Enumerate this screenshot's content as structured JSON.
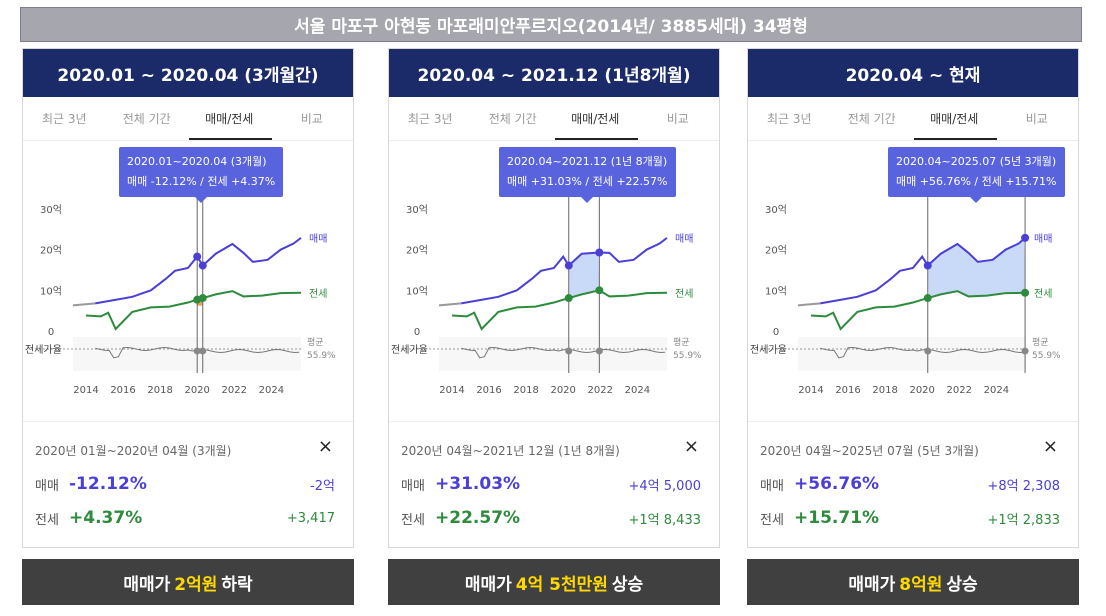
{
  "title": "서울 마포구 아현동 마포래미안푸르지오(2014년/ 3885세대) 34평형",
  "tabs": [
    "최근 3년",
    "전체 기간",
    "매매/전세",
    "비교"
  ],
  "active_tab": 2,
  "series_labels": {
    "sale": "매매",
    "jeonse": "전세",
    "ratio": "전세가율",
    "avg": "평균",
    "avg_value": "55.9%"
  },
  "colors": {
    "sale": "#4a3fd6",
    "jeonse": "#2e8b3d",
    "highlight": "#5a63de",
    "header": "#1b2a68",
    "banner": "#404040",
    "banner_highlight": "#ffd800"
  },
  "panels": [
    {
      "header": "2020.01 ~ 2020.04 (3개월간)",
      "tooltip": {
        "line1": "2020.01~2020.04 (3개월)",
        "line2": "매매 -12.12%  /  전세 +4.37%"
      },
      "summary": {
        "period": "2020년 01월~2020년 04월 (3개월)",
        "close": "×",
        "sale_label": "매매",
        "sale_pct": "-12.12%",
        "sale_amt": "-2억",
        "jeonse_label": "전세",
        "jeonse_pct": "+4.37%",
        "jeonse_amt": "+3,417"
      },
      "banner": {
        "prefix": "매매가",
        "highlight": "2억원",
        "suffix": "하락"
      }
    },
    {
      "header": "2020.04 ~ 2021.12 (1년8개월)",
      "tooltip": {
        "line1": "2020.04~2021.12 (1년 8개월)",
        "line2": "매매 +31.03%  /  전세 +22.57%"
      },
      "summary": {
        "period": "2020년 04월~2021년 12월 (1년 8개월)",
        "close": "×",
        "sale_label": "매매",
        "sale_pct": "+31.03%",
        "sale_amt": "+4억 5,000",
        "jeonse_label": "전세",
        "jeonse_pct": "+22.57%",
        "jeonse_amt": "+1억 8,433"
      },
      "banner": {
        "prefix": "매매가",
        "highlight": "4억 5천만원",
        "suffix": "상승"
      }
    },
    {
      "header": "2020.04 ~ 현재",
      "tooltip": {
        "line1": "2020.04~2025.07 (5년 3개월)",
        "line2": "매매 +56.76%  /  전세 +15.71%"
      },
      "summary": {
        "period": "2020년 04월~2025년 07월 (5년 3개월)",
        "close": "×",
        "sale_label": "매매",
        "sale_pct": "+56.76%",
        "sale_amt": "+8억 2,308",
        "jeonse_label": "전세",
        "jeonse_pct": "+15.71%",
        "jeonse_amt": "+1억 2,833"
      },
      "banner": {
        "prefix": "매매가",
        "highlight": "8억원",
        "suffix": "상승"
      }
    }
  ],
  "chart_data": [
    {
      "type": "line",
      "title": "2020.01 ~ 2020.04 (3개월간)",
      "x_ticks": [
        "2014",
        "2016",
        "2018",
        "2020",
        "2022",
        "2024"
      ],
      "y_ticks": [
        "0",
        "10억",
        "20억",
        "30억"
      ],
      "xlim": [
        2013.3,
        2025.6
      ],
      "ylim": [
        0,
        30
      ],
      "selection": [
        2020.0,
        2020.3
      ],
      "series": [
        {
          "name": "매매",
          "x": [
            2013.3,
            2014.5,
            2015.5,
            2016.5,
            2017.5,
            2018.3,
            2018.8,
            2019.5,
            2020.0,
            2020.3,
            2021.0,
            2021.9,
            2022.5,
            2023.0,
            2023.8,
            2024.5,
            2025.2,
            2025.6
          ],
          "values": [
            6.3,
            6.8,
            7.6,
            8.4,
            10.0,
            12.8,
            14.8,
            15.5,
            18.3,
            16.1,
            19.0,
            21.4,
            19.2,
            17.0,
            17.5,
            20.0,
            21.5,
            22.9
          ]
        },
        {
          "name": "전세",
          "x": [
            2014.0,
            2014.8,
            2015.2,
            2015.6,
            2016.5,
            2017.5,
            2018.5,
            2019.5,
            2020.0,
            2020.3,
            2021.0,
            2021.9,
            2022.5,
            2023.5,
            2024.5,
            2025.6
          ],
          "values": [
            3.8,
            3.6,
            4.5,
            0.5,
            4.7,
            5.8,
            6.0,
            7.0,
            7.7,
            8.1,
            9.0,
            9.8,
            8.5,
            8.7,
            9.3,
            9.4
          ]
        }
      ]
    },
    {
      "type": "line",
      "title": "2020.04 ~ 2021.12 (1년8개월)",
      "x_ticks": [
        "2014",
        "2016",
        "2018",
        "2020",
        "2022",
        "2024"
      ],
      "y_ticks": [
        "0",
        "10억",
        "20억",
        "30억"
      ],
      "xlim": [
        2013.3,
        2025.6
      ],
      "ylim": [
        0,
        30
      ],
      "selection": [
        2020.3,
        2021.95
      ],
      "series": [
        {
          "name": "매매",
          "x": [
            2013.3,
            2014.5,
            2015.5,
            2016.5,
            2017.5,
            2018.3,
            2018.8,
            2019.5,
            2020.0,
            2020.3,
            2021.0,
            2021.95,
            2022.5,
            2023.0,
            2023.8,
            2024.5,
            2025.2,
            2025.6
          ],
          "values": [
            6.3,
            6.8,
            7.6,
            8.4,
            10.0,
            12.8,
            14.8,
            15.5,
            18.3,
            16.1,
            19.0,
            19.3,
            19.2,
            17.0,
            17.5,
            20.0,
            21.5,
            22.9
          ]
        },
        {
          "name": "전세",
          "x": [
            2014.0,
            2014.8,
            2015.2,
            2015.6,
            2016.5,
            2017.5,
            2018.5,
            2019.5,
            2020.0,
            2020.3,
            2021.0,
            2021.95,
            2022.5,
            2023.5,
            2024.5,
            2025.6
          ],
          "values": [
            3.8,
            3.6,
            4.5,
            0.5,
            4.7,
            5.8,
            6.0,
            7.0,
            7.7,
            8.1,
            9.0,
            10.0,
            8.5,
            8.7,
            9.3,
            9.4
          ]
        }
      ]
    },
    {
      "type": "line",
      "title": "2020.04 ~ 현재",
      "x_ticks": [
        "2014",
        "2016",
        "2018",
        "2020",
        "2022",
        "2024"
      ],
      "y_ticks": [
        "0",
        "10억",
        "20억",
        "30억"
      ],
      "xlim": [
        2013.3,
        2025.6
      ],
      "ylim": [
        0,
        30
      ],
      "selection": [
        2020.3,
        2025.55
      ],
      "series": [
        {
          "name": "매매",
          "x": [
            2013.3,
            2014.5,
            2015.5,
            2016.5,
            2017.5,
            2018.3,
            2018.8,
            2019.5,
            2020.0,
            2020.3,
            2021.0,
            2021.9,
            2022.5,
            2023.0,
            2023.8,
            2024.5,
            2025.2,
            2025.55
          ],
          "values": [
            6.3,
            6.8,
            7.6,
            8.4,
            10.0,
            12.8,
            14.8,
            15.5,
            18.3,
            16.1,
            19.0,
            21.4,
            19.2,
            17.0,
            17.5,
            20.0,
            21.5,
            22.9
          ]
        },
        {
          "name": "전세",
          "x": [
            2014.0,
            2014.8,
            2015.2,
            2015.6,
            2016.5,
            2017.5,
            2018.5,
            2019.5,
            2020.0,
            2020.3,
            2021.0,
            2021.9,
            2022.5,
            2023.5,
            2024.5,
            2025.55
          ],
          "values": [
            3.8,
            3.6,
            4.5,
            0.5,
            4.7,
            5.8,
            6.0,
            7.0,
            7.7,
            8.1,
            9.0,
            9.8,
            8.5,
            8.7,
            9.3,
            9.4
          ]
        }
      ]
    }
  ]
}
